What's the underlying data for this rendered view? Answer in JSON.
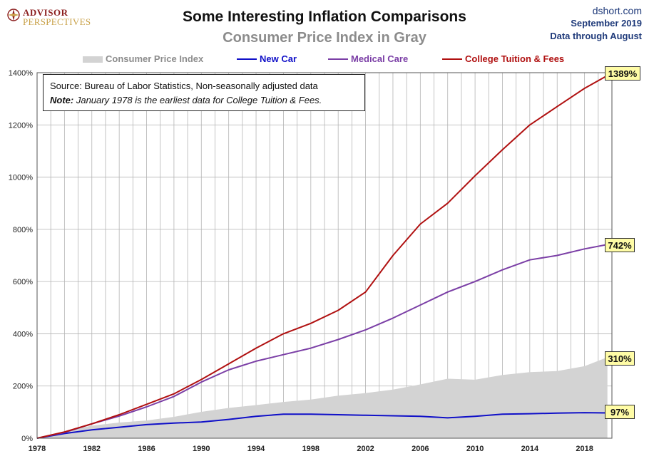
{
  "header": {
    "title": "Some Interesting Inflation Comparisons",
    "subtitle": "Consumer Price Index in Gray",
    "site": "dshort.com",
    "date": "September 2019",
    "data_through": "Data through August"
  },
  "logo": {
    "line1": "ADVISOR",
    "line2": "PERSPECTIVES",
    "icon": "compass-icon"
  },
  "note": {
    "source": "Source: Bureau of Labor Statistics, Non-seasonally adjusted data",
    "note_label": "Note:",
    "note_text": "January 1978 is the earliest data for College Tuition & Fees."
  },
  "end_labels": {
    "cpi": "310%",
    "new_car": "97%",
    "medical": "742%",
    "tuition": "1389%"
  },
  "colors": {
    "cpi": "#d3d3d3",
    "new_car": "#1010c8",
    "medical": "#7b3fa6",
    "tuition": "#b01010",
    "label_bg": "#fffca6",
    "grid": "#b4b4b4"
  },
  "chart_data": {
    "type": "line",
    "title": "Some Interesting Inflation Comparisons",
    "subtitle": "Consumer Price Index in Gray",
    "xlim": [
      1978,
      2020
    ],
    "ylim": [
      0,
      1400
    ],
    "x_ticks": [
      1978,
      1982,
      1986,
      1990,
      1994,
      1998,
      2002,
      2006,
      2010,
      2014,
      2018
    ],
    "y_ticks": [
      0,
      200,
      400,
      600,
      800,
      1000,
      1200,
      1400
    ],
    "y_tick_labels": [
      "0%",
      "200%",
      "400%",
      "600%",
      "800%",
      "1000%",
      "1200%",
      "1400%"
    ],
    "grid": true,
    "legend_position": "top",
    "x": [
      1978,
      1980,
      1982,
      1984,
      1986,
      1988,
      1990,
      1992,
      1994,
      1996,
      1998,
      2000,
      2002,
      2004,
      2006,
      2008,
      2010,
      2012,
      2014,
      2016,
      2018,
      2019.67
    ],
    "series": [
      {
        "name": "Consumer Price Index",
        "style": "area",
        "values": [
          0,
          27,
          48,
          60,
          68,
          82,
          101,
          116,
          127,
          139,
          148,
          163,
          173,
          186,
          206,
          228,
          224,
          242,
          253,
          257,
          276,
          310
        ]
      },
      {
        "name": "New Car",
        "style": "line",
        "values": [
          0,
          18,
          32,
          42,
          52,
          58,
          62,
          72,
          84,
          92,
          92,
          90,
          88,
          86,
          84,
          78,
          84,
          92,
          94,
          96,
          98,
          97
        ]
      },
      {
        "name": "Medical Care",
        "style": "line",
        "values": [
          0,
          22,
          55,
          85,
          120,
          160,
          215,
          262,
          295,
          320,
          345,
          378,
          415,
          460,
          510,
          560,
          600,
          645,
          683,
          700,
          725,
          742
        ]
      },
      {
        "name": "College Tuition & Fees",
        "style": "line",
        "values": [
          0,
          24,
          55,
          90,
          130,
          170,
          225,
          285,
          345,
          400,
          440,
          490,
          560,
          700,
          820,
          900,
          1005,
          1105,
          1200,
          1270,
          1340,
          1389
        ]
      }
    ]
  }
}
